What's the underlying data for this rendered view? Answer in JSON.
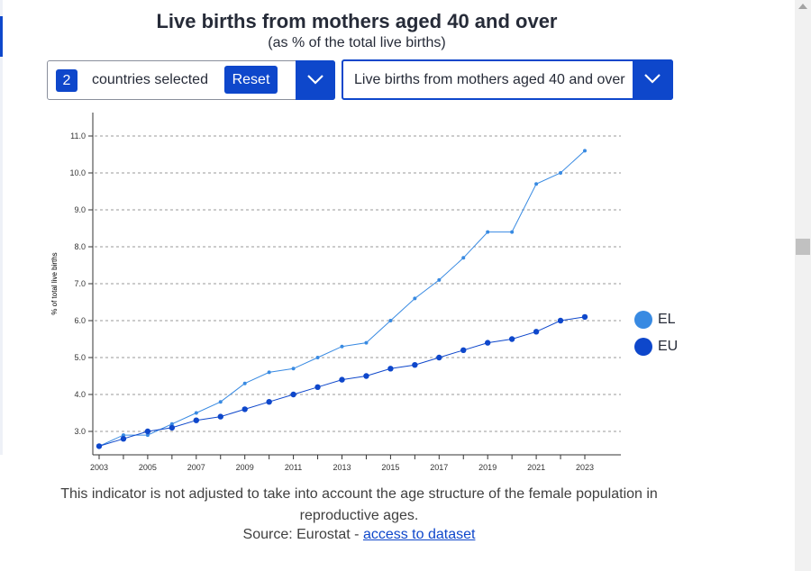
{
  "header": {
    "title": "Live births from mothers aged 40 and over",
    "subtitle": "(as % of the total live births)"
  },
  "controls": {
    "country_count": "2",
    "countries_label": "countries selected",
    "reset_label": "Reset",
    "indicator_label": "Live births from mothers aged 40 and over"
  },
  "chart_data": {
    "type": "line",
    "title": "Live births from mothers aged 40 and over",
    "subtitle": "(as % of the total live births)",
    "xlabel": "",
    "ylabel": "% of total live births",
    "x": [
      2003,
      2004,
      2005,
      2006,
      2007,
      2008,
      2009,
      2010,
      2011,
      2012,
      2013,
      2014,
      2015,
      2016,
      2017,
      2018,
      2019,
      2020,
      2021,
      2022,
      2023
    ],
    "x_tick_labels": [
      "2003",
      "2005",
      "2007",
      "2009",
      "2011",
      "2013",
      "2015",
      "2017",
      "2019",
      "2021",
      "2023"
    ],
    "y_tick_labels": [
      "3.0",
      "4.0",
      "5.0",
      "6.0",
      "7.0",
      "8.0",
      "9.0",
      "10.0",
      "11.0"
    ],
    "ylim": [
      2.4,
      11.6
    ],
    "grid": true,
    "legend_position": "right",
    "series": [
      {
        "name": "EL",
        "color": "#388ae2",
        "values": [
          2.6,
          2.9,
          2.9,
          3.2,
          3.5,
          3.8,
          4.3,
          4.6,
          4.7,
          5.0,
          5.3,
          5.4,
          6.0,
          6.6,
          7.1,
          7.7,
          8.4,
          8.4,
          9.7,
          10.0,
          10.6
        ]
      },
      {
        "name": "EU",
        "color": "#0e47cb",
        "values": [
          2.6,
          2.8,
          3.0,
          3.1,
          3.3,
          3.4,
          3.6,
          3.8,
          4.0,
          4.2,
          4.4,
          4.5,
          4.7,
          4.8,
          5.0,
          5.2,
          5.4,
          5.5,
          5.7,
          6.0,
          6.1
        ]
      }
    ]
  },
  "footer": {
    "note": "This indicator is not adjusted to take into account the age structure of the female population in reproductive ages.",
    "source_prefix": "Source: Eurostat - ",
    "source_link": "access to dataset"
  }
}
